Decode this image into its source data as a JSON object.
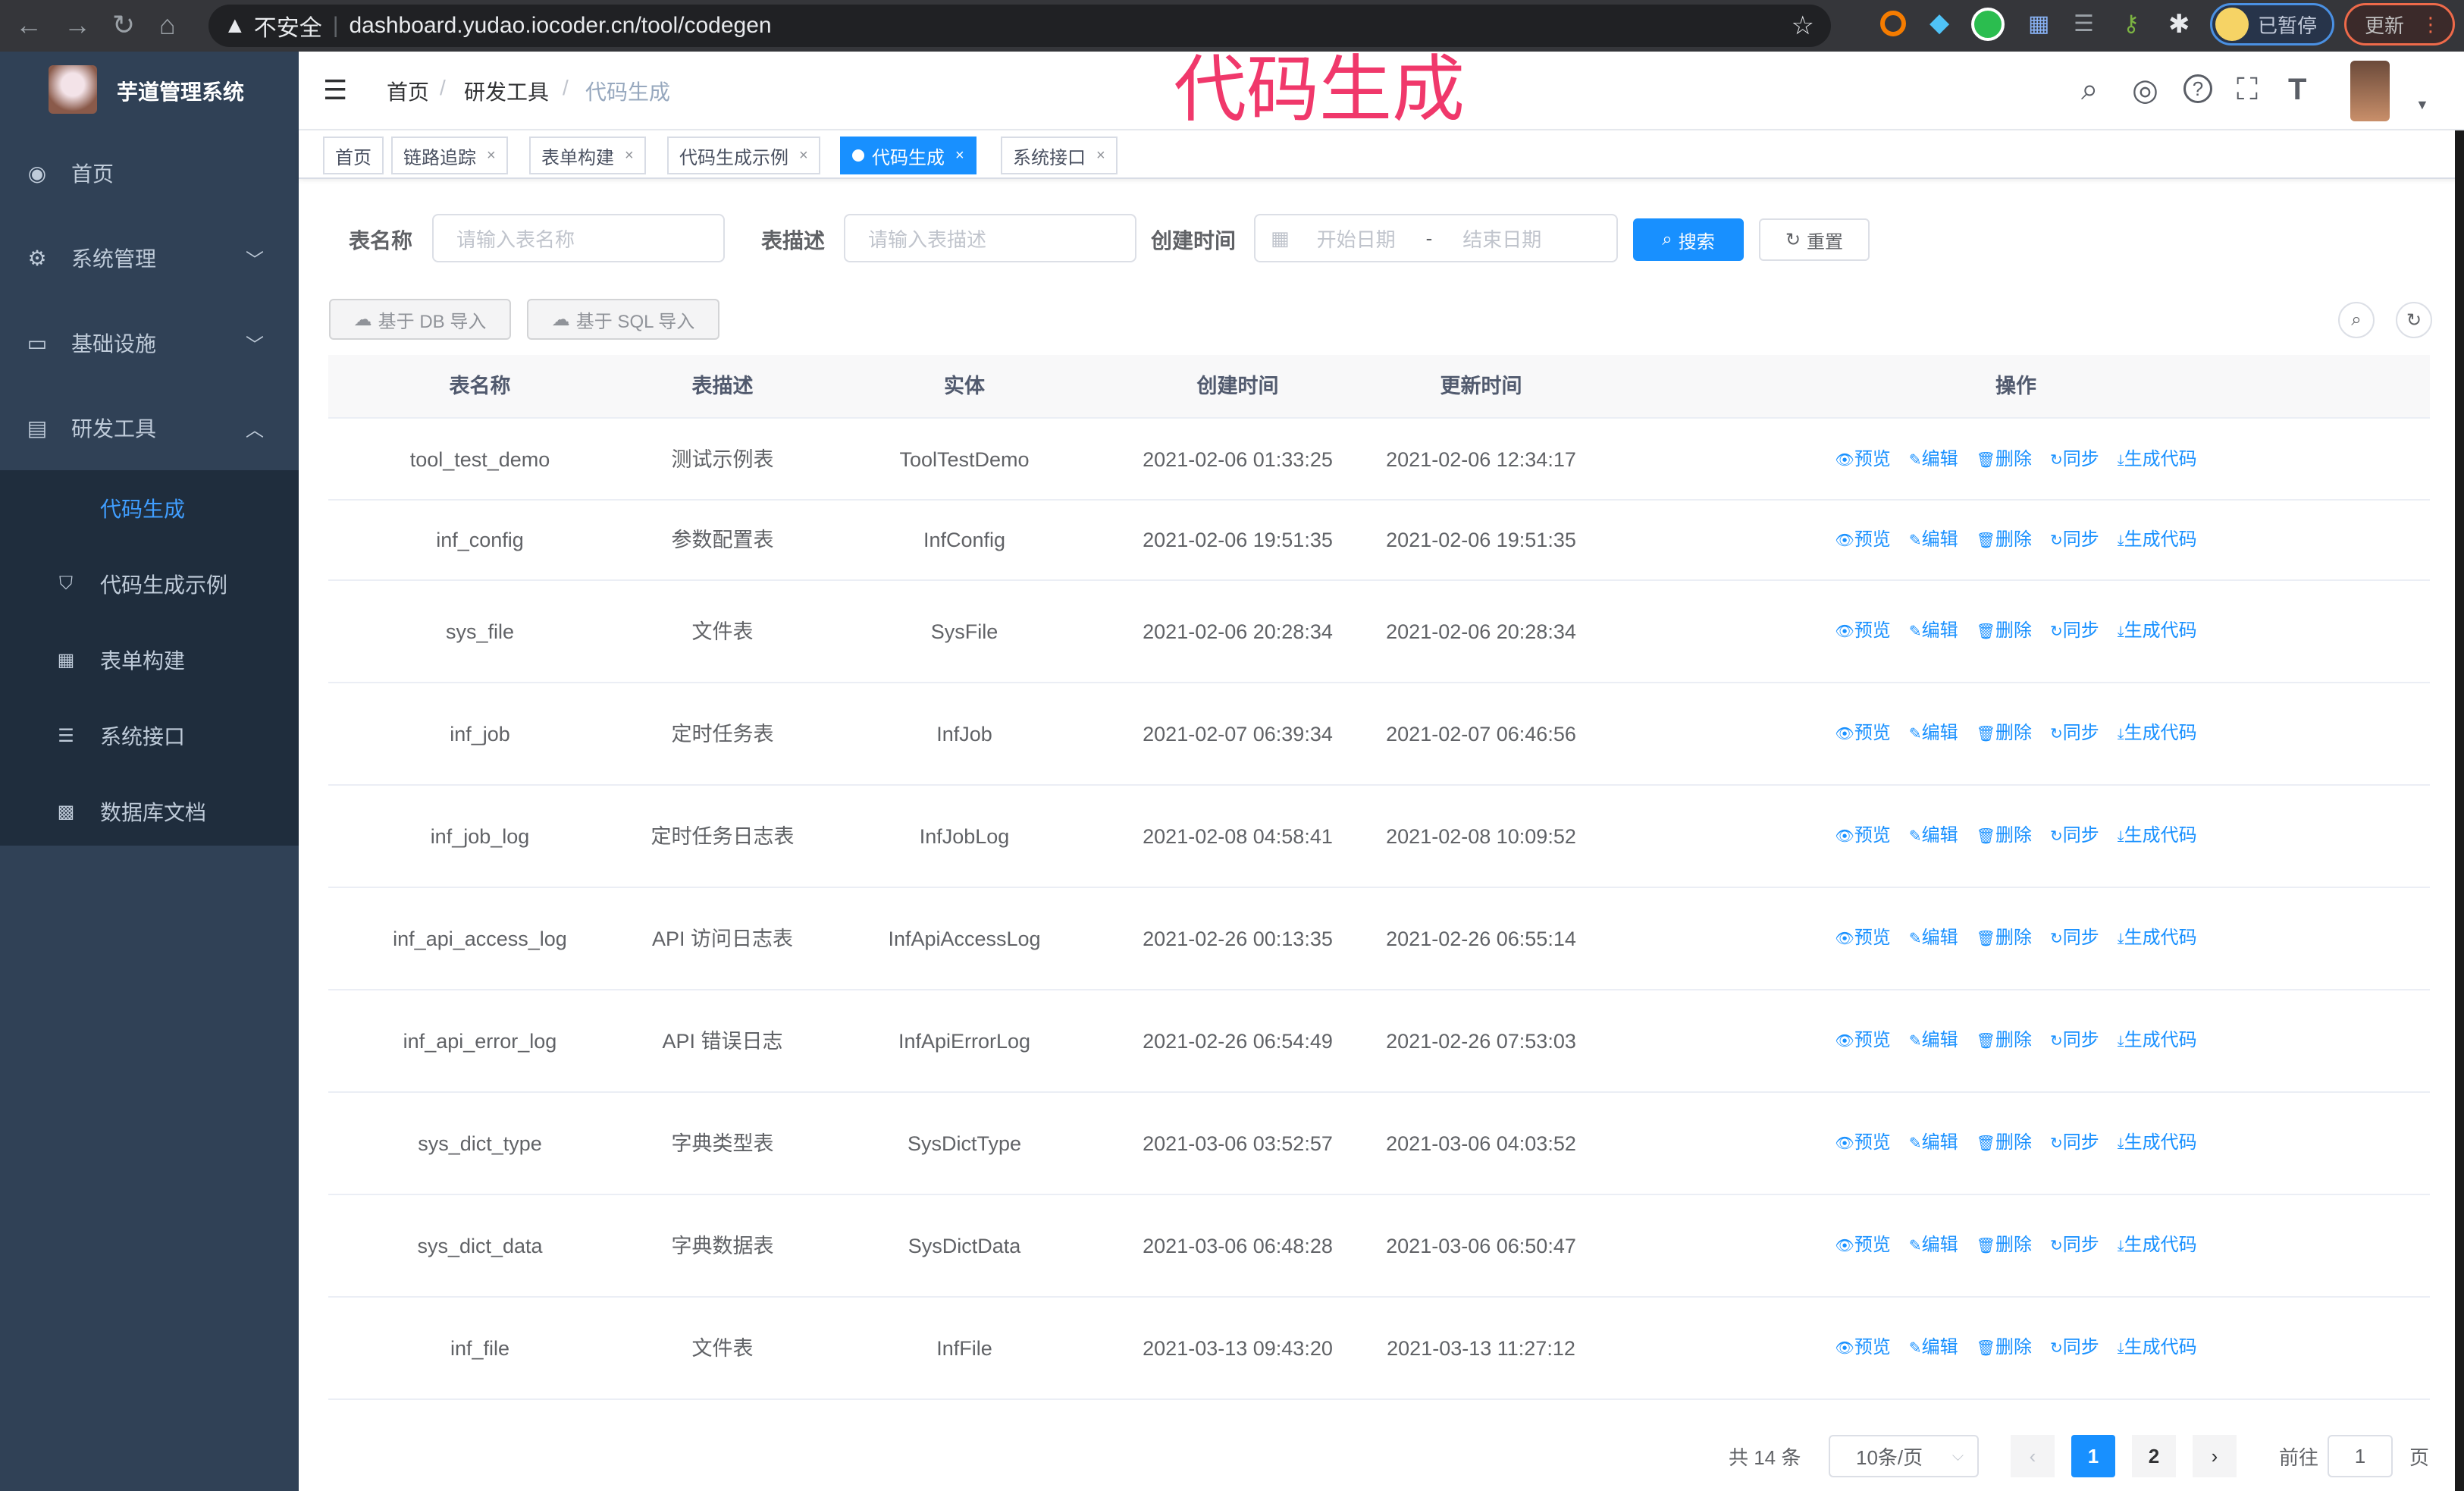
{
  "browser": {
    "security": "不安全",
    "url": "dashboard.yudao.iocoder.cn/tool/codegen",
    "profile_status": "已暂停",
    "update_label": "更新"
  },
  "overlay_title": "代码生成",
  "sidebar": {
    "title": "芋道管理系统",
    "items": [
      {
        "label": "首页",
        "icon": "dashboard-icon"
      },
      {
        "label": "系统管理",
        "icon": "gear-icon"
      },
      {
        "label": "基础设施",
        "icon": "monitor-icon"
      },
      {
        "label": "研发工具",
        "icon": "toolbox-icon"
      }
    ],
    "subitems": [
      {
        "label": "代码生成",
        "icon": "code-icon",
        "active": true
      },
      {
        "label": "代码生成示例",
        "icon": "shield-icon"
      },
      {
        "label": "表单构建",
        "icon": "form-icon"
      },
      {
        "label": "系统接口",
        "icon": "sliders-icon"
      },
      {
        "label": "数据库文档",
        "icon": "table-icon"
      }
    ]
  },
  "breadcrumb": [
    "首页",
    "研发工具",
    "代码生成"
  ],
  "tags": [
    {
      "label": "首页",
      "closable": false
    },
    {
      "label": "链路追踪",
      "closable": true
    },
    {
      "label": "表单构建",
      "closable": true
    },
    {
      "label": "代码生成示例",
      "closable": true
    },
    {
      "label": "代码生成",
      "closable": true,
      "active": true
    },
    {
      "label": "系统接口",
      "closable": true
    }
  ],
  "search": {
    "table_name_label": "表名称",
    "table_name_placeholder": "请输入表名称",
    "table_desc_label": "表描述",
    "table_desc_placeholder": "请输入表描述",
    "created_label": "创建时间",
    "start_placeholder": "开始日期",
    "range_sep": "-",
    "end_placeholder": "结束日期",
    "search_label": "搜索",
    "reset_label": "重置"
  },
  "toolbar": {
    "import_db": "基于 DB 导入",
    "import_sql": "基于 SQL 导入"
  },
  "table": {
    "columns": [
      "表名称",
      "表描述",
      "实体",
      "创建时间",
      "更新时间",
      "操作"
    ],
    "actions": [
      "预览",
      "编辑",
      "删除",
      "同步",
      "生成代码"
    ],
    "rows": [
      [
        "tool_test_demo",
        "测试示例表",
        "ToolTestDemo",
        "2021-02-06 01:33:25",
        "2021-02-06 12:34:17"
      ],
      [
        "inf_config",
        "参数配置表",
        "InfConfig",
        "2021-02-06 19:51:35",
        "2021-02-06 19:51:35"
      ],
      [
        "sys_file",
        "文件表",
        "SysFile",
        "2021-02-06 20:28:34",
        "2021-02-06 20:28:34"
      ],
      [
        "inf_job",
        "定时任务表",
        "InfJob",
        "2021-02-07 06:39:34",
        "2021-02-07 06:46:56"
      ],
      [
        "inf_job_log",
        "定时任务日志表",
        "InfJobLog",
        "2021-02-08 04:58:41",
        "2021-02-08 10:09:52"
      ],
      [
        "inf_api_access_log",
        "API 访问日志表",
        "InfApiAccessLog",
        "2021-02-26 00:13:35",
        "2021-02-26 06:55:14"
      ],
      [
        "inf_api_error_log",
        "API 错误日志",
        "InfApiErrorLog",
        "2021-02-26 06:54:49",
        "2021-02-26 07:53:03"
      ],
      [
        "sys_dict_type",
        "字典类型表",
        "SysDictType",
        "2021-03-06 03:52:57",
        "2021-03-06 04:03:52"
      ],
      [
        "sys_dict_data",
        "字典数据表",
        "SysDictData",
        "2021-03-06 06:48:28",
        "2021-03-06 06:50:47"
      ],
      [
        "inf_file",
        "文件表",
        "InfFile",
        "2021-03-13 09:43:20",
        "2021-03-13 11:27:12"
      ]
    ]
  },
  "pagination": {
    "total_text": "共 14 条",
    "page_size": "10条/页",
    "pages": [
      "1",
      "2"
    ],
    "current": "1",
    "goto_label": "前往",
    "goto_value": "1",
    "page_suffix": "页"
  },
  "colors": {
    "sidebar_bg": "#304156",
    "submenu_bg": "#1f2d3d",
    "primary": "#1890ff",
    "overlay_title": "#f0386b"
  }
}
